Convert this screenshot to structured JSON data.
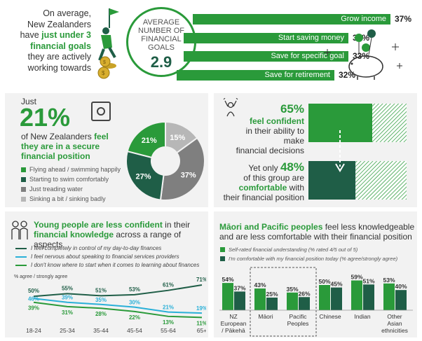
{
  "top": {
    "intro_line1": "On average,",
    "intro_line2": "New Zealanders",
    "intro_line3a": "have ",
    "intro_line3b": "just under 3",
    "intro_line4": "financial goals",
    "intro_line5": "they are actively",
    "intro_line6": "working towards",
    "circle_l1": "AVERAGE",
    "circle_l2": "NUMBER OF",
    "circle_l3": "FINANCIAL",
    "circle_l4": "GOALS",
    "circle_value": "2.9",
    "goals": [
      {
        "label": "Grow income",
        "value": 37,
        "display": "37%"
      },
      {
        "label": "Start saving money",
        "value": 33,
        "display": "33%"
      },
      {
        "label": "Save for specific goal",
        "value": 33,
        "display": "33%"
      },
      {
        "label": "Save for retirement",
        "value": 32,
        "display": "32%"
      }
    ]
  },
  "secure": {
    "just": "Just",
    "pct": "21%",
    "text1a": "of New Zealanders ",
    "text1b": "feel",
    "text2": "they are in a secure",
    "text3": "financial position",
    "legend": [
      {
        "label": "Flying ahead / swimming happily",
        "color": "#2a9a3a"
      },
      {
        "label": "Starting to swim comfortably",
        "color": "#1f5e47"
      },
      {
        "label": "Just treading water",
        "color": "#7f7f7f"
      },
      {
        "label": "Sinking a bit / sinking badly",
        "color": "#b7b7b7"
      }
    ]
  },
  "confidence": {
    "pct1": "65%",
    "line1": "feel confident",
    "line2": "in their ability to make",
    "line3": "financial decisions",
    "yet_only": "Yet only ",
    "pct2": "48%",
    "line4": "of this group are",
    "line5a": "comfortable",
    "line5b": " with",
    "line6": "their financial position",
    "bar1_value": 65,
    "bar2_value": 48
  },
  "young": {
    "title1a": "Young people are less confident",
    "title1b": " in their",
    "title2a": "financial knowledge",
    "title2b": " across a range of aspects",
    "legend": [
      {
        "label": "I feel completely in control of my day-to-day finances",
        "color": "#1f5e47"
      },
      {
        "label": "I feel nervous about speaking to financial services providers",
        "color": "#2ab0d8"
      },
      {
        "label": "I don't know where to start when it comes to learning about finances",
        "color": "#2a9a3a"
      }
    ],
    "agree_label": "% agree / strongly agree"
  },
  "maori": {
    "title1a": "Māori and Pacific peoples",
    "title1b": " feel less knowledgeable",
    "title2": "and are less comfortable with their financial position",
    "legend": [
      {
        "label": "Self-rated financial understanding (% rated 4/5 out of 5)",
        "color": "#2a9a3a"
      },
      {
        "label": "I'm comfortable with my financial position today (% agree/strongly agree)",
        "color": "#1f5e47"
      }
    ]
  },
  "chart_data": [
    {
      "type": "pie",
      "categories": [
        "Flying ahead / swimming happily",
        "Starting to swim comfortably",
        "Just treading water",
        "Sinking a bit / sinking badly"
      ],
      "values": [
        21,
        27,
        37,
        15
      ],
      "labels": [
        "21%",
        "27%",
        "37%",
        "15%"
      ]
    },
    {
      "type": "line",
      "categories": [
        "18-24",
        "25-34",
        "35-44",
        "45-54",
        "55-64",
        "65+"
      ],
      "series": [
        {
          "name": "I feel completely in control of my day-to-day finances",
          "values": [
            50,
            55,
            51,
            53,
            61,
            71
          ]
        },
        {
          "name": "I feel nervous about speaking to financial services providers",
          "values": [
            46,
            39,
            35,
            30,
            21,
            19
          ]
        },
        {
          "name": "I don't know where to start when it comes to learning about finances",
          "values": [
            39,
            31,
            28,
            22,
            13,
            11
          ]
        }
      ],
      "ylim": [
        0,
        80
      ]
    },
    {
      "type": "bar",
      "categories": [
        "NZ European / Pākehā",
        "Māori",
        "Pacific Peoples",
        "Chinese",
        "Indian",
        "Other Asian ethnicities"
      ],
      "series": [
        {
          "name": "Self-rated financial understanding (% rated 4/5 out of 5)",
          "values": [
            54,
            43,
            35,
            50,
            59,
            53
          ]
        },
        {
          "name": "I'm comfortable with my financial position today (% agree/strongly agree)",
          "values": [
            37,
            25,
            26,
            45,
            51,
            40
          ]
        }
      ],
      "ylim": [
        0,
        70
      ]
    }
  ]
}
